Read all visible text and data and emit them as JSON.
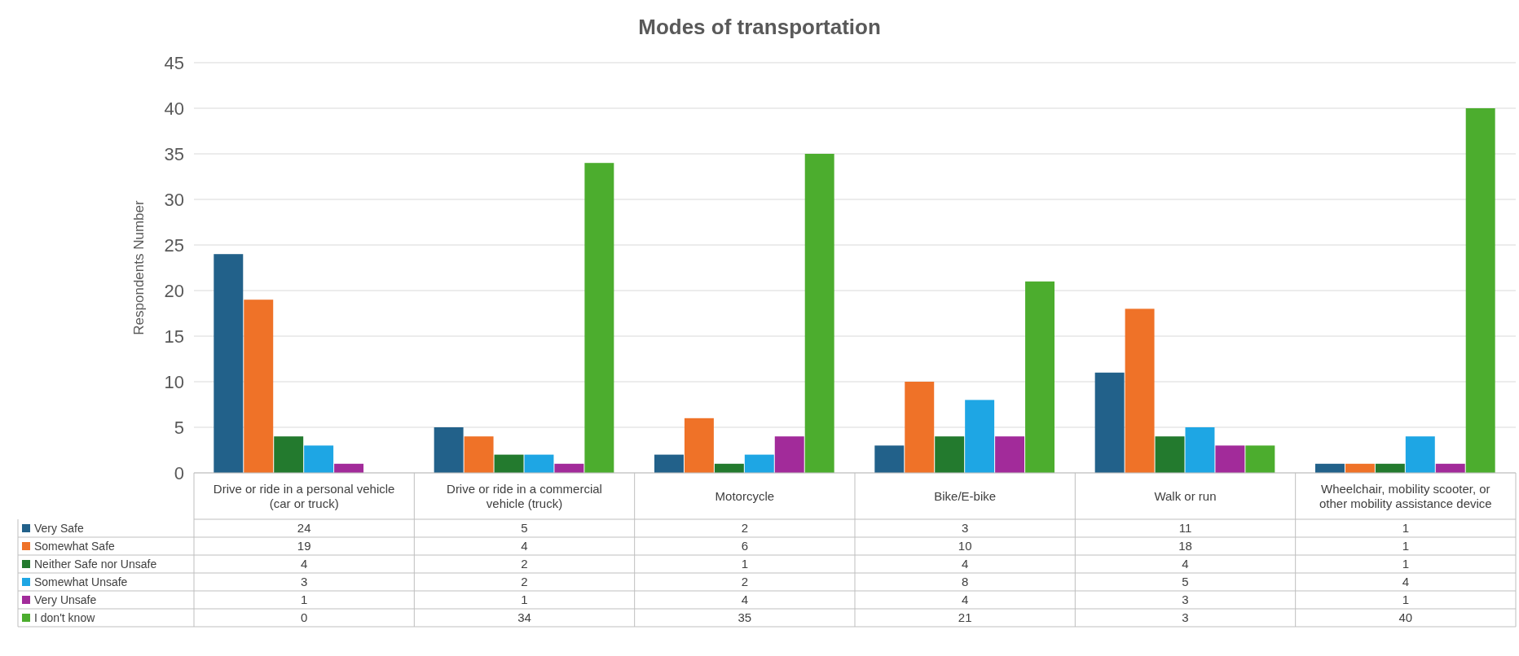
{
  "chart_data": {
    "type": "bar",
    "title": "Modes of transportation",
    "ylabel": "Respondents Number",
    "categories": [
      "Drive or ride in a personal vehicle (car or truck)",
      "Drive or ride in a commercial vehicle (truck)",
      "Motorcycle",
      "Bike/E-bike",
      "Walk or run",
      "Wheelchair, mobility scooter, or other mobility assistance device"
    ],
    "series": [
      {
        "name": "Very Safe",
        "color": "#22618a",
        "values": [
          24,
          5,
          2,
          3,
          11,
          1
        ]
      },
      {
        "name": "Somewhat Safe",
        "color": "#ef7228",
        "values": [
          19,
          4,
          6,
          10,
          18,
          1
        ]
      },
      {
        "name": "Neither Safe nor Unsafe",
        "color": "#237a2e",
        "values": [
          4,
          2,
          1,
          4,
          4,
          1
        ]
      },
      {
        "name": "Somewhat Unsafe",
        "color": "#1ea6e4",
        "values": [
          3,
          2,
          2,
          8,
          5,
          4
        ]
      },
      {
        "name": "Very Unsafe",
        "color": "#a22b9a",
        "values": [
          1,
          1,
          4,
          4,
          3,
          1
        ]
      },
      {
        "name": "I don't know",
        "color": "#4cad2e",
        "values": [
          0,
          34,
          35,
          21,
          3,
          40
        ]
      }
    ],
    "ylim": [
      0,
      45
    ],
    "yticks": [
      0,
      5,
      10,
      15,
      20,
      25,
      30,
      35,
      40,
      45
    ],
    "grid": "y",
    "legend": "bottom",
    "data_labels": true
  }
}
